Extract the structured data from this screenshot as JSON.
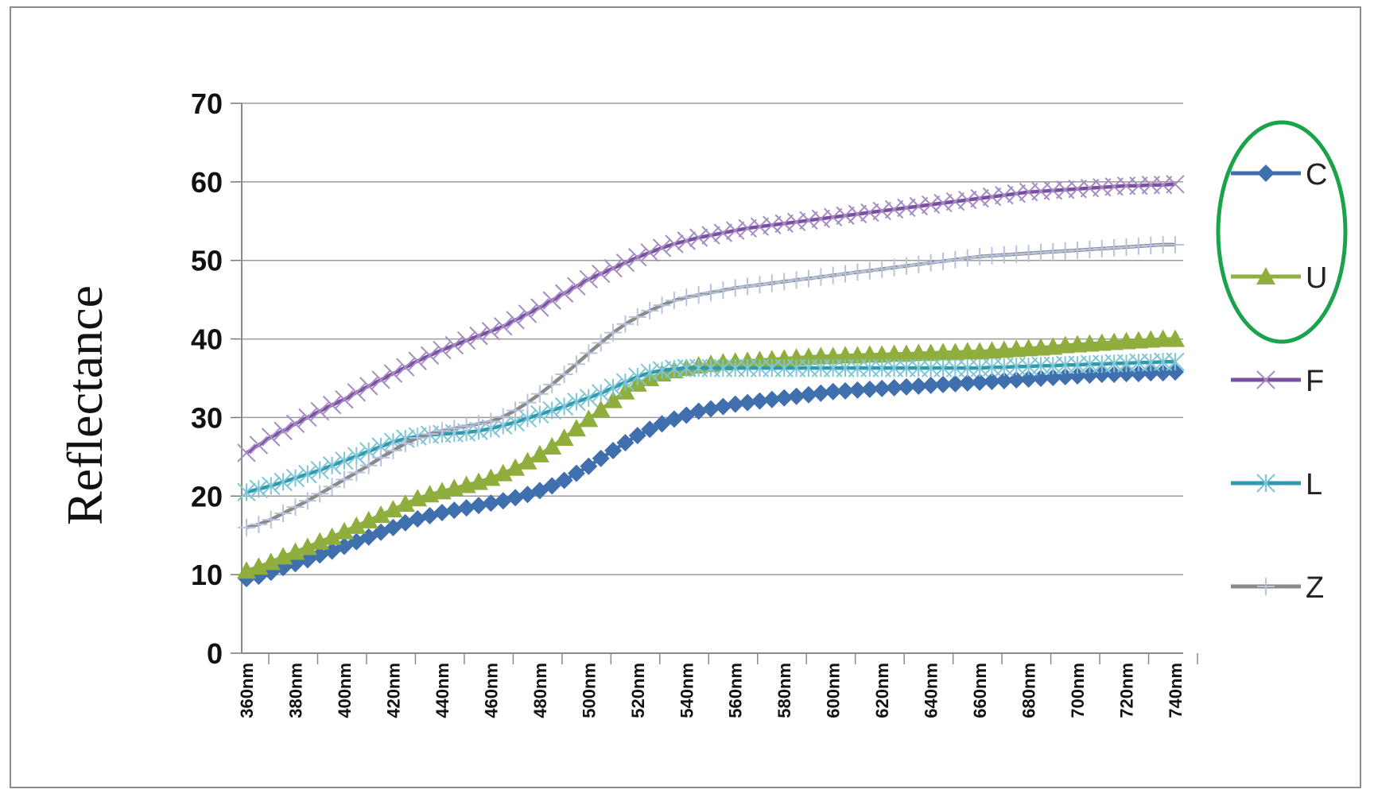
{
  "chart_data": {
    "type": "line",
    "title": "",
    "xlabel": "",
    "ylabel": "Reflectance",
    "ylim": [
      0,
      70
    ],
    "yticks": [
      "0",
      "10",
      "20",
      "30",
      "40",
      "50",
      "60",
      "70"
    ],
    "grid": true,
    "legend_position": "right",
    "x": [
      360,
      365,
      370,
      375,
      380,
      385,
      390,
      395,
      400,
      405,
      410,
      415,
      420,
      425,
      430,
      435,
      440,
      445,
      450,
      455,
      460,
      465,
      470,
      475,
      480,
      485,
      490,
      495,
      500,
      505,
      510,
      515,
      520,
      525,
      530,
      535,
      540,
      545,
      550,
      555,
      560,
      565,
      570,
      575,
      580,
      585,
      590,
      595,
      600,
      605,
      610,
      615,
      620,
      625,
      630,
      635,
      640,
      645,
      650,
      655,
      660,
      665,
      670,
      675,
      680,
      685,
      690,
      695,
      700,
      705,
      710,
      715,
      720,
      725,
      730,
      735,
      740
    ],
    "categories": [
      "360nm",
      "380nm",
      "400nm",
      "420nm",
      "440nm",
      "460nm",
      "480nm",
      "500nm",
      "520nm",
      "540nm",
      "560nm",
      "580nm",
      "600nm",
      "620nm",
      "640nm",
      "660nm",
      "680nm",
      "700nm",
      "720nm",
      "740nm"
    ],
    "series": [
      {
        "name": "C",
        "color": "#3f6fad",
        "marker": "diamond",
        "values": [
          9.5,
          9.8,
          10.3,
          10.9,
          11.4,
          11.9,
          12.5,
          13.0,
          13.6,
          14.2,
          14.8,
          15.4,
          16.0,
          16.6,
          17.1,
          17.5,
          17.9,
          18.2,
          18.5,
          18.8,
          19.1,
          19.4,
          19.8,
          20.2,
          20.7,
          21.3,
          22.0,
          22.9,
          23.8,
          24.8,
          25.8,
          26.8,
          27.7,
          28.5,
          29.2,
          29.8,
          30.3,
          30.8,
          31.1,
          31.4,
          31.7,
          31.9,
          32.1,
          32.3,
          32.5,
          32.7,
          32.9,
          33.1,
          33.3,
          33.4,
          33.5,
          33.6,
          33.7,
          33.8,
          33.9,
          34.0,
          34.1,
          34.2,
          34.3,
          34.4,
          34.5,
          34.6,
          34.7,
          34.8,
          34.9,
          35.0,
          35.1,
          35.2,
          35.3,
          35.4,
          35.5,
          35.5,
          35.6,
          35.6,
          35.7,
          35.7,
          35.8
        ]
      },
      {
        "name": "U",
        "color": "#8fae3e",
        "marker": "triangle",
        "values": [
          10.5,
          11.0,
          11.6,
          12.3,
          12.9,
          13.5,
          14.2,
          14.8,
          15.5,
          16.2,
          16.9,
          17.6,
          18.3,
          19.0,
          19.7,
          20.2,
          20.6,
          21.0,
          21.4,
          21.8,
          22.3,
          22.9,
          23.6,
          24.4,
          25.3,
          26.3,
          27.4,
          28.6,
          29.8,
          31.0,
          32.2,
          33.3,
          34.3,
          35.0,
          35.6,
          36.0,
          36.3,
          36.6,
          36.8,
          37.0,
          37.1,
          37.2,
          37.3,
          37.4,
          37.5,
          37.6,
          37.7,
          37.8,
          37.8,
          37.9,
          37.9,
          38.0,
          38.0,
          38.1,
          38.1,
          38.2,
          38.2,
          38.3,
          38.3,
          38.4,
          38.4,
          38.5,
          38.6,
          38.7,
          38.8,
          38.9,
          39.0,
          39.2,
          39.3,
          39.4,
          39.5,
          39.6,
          39.7,
          39.8,
          39.9,
          40.0,
          40.0
        ]
      },
      {
        "name": "F",
        "color": "#7b4fa0",
        "marker": "x",
        "values": [
          25.5,
          26.5,
          27.5,
          28.3,
          29.2,
          30.0,
          30.8,
          31.6,
          32.3,
          33.2,
          34.0,
          34.8,
          35.6,
          36.4,
          37.2,
          37.9,
          38.6,
          39.2,
          39.8,
          40.4,
          41.0,
          41.6,
          42.4,
          43.2,
          44.0,
          44.9,
          45.8,
          46.7,
          47.6,
          48.3,
          49.0,
          49.7,
          50.4,
          51.0,
          51.6,
          52.1,
          52.5,
          52.9,
          53.2,
          53.5,
          53.8,
          54.1,
          54.3,
          54.5,
          54.7,
          54.9,
          55.1,
          55.3,
          55.5,
          55.7,
          55.9,
          56.1,
          56.3,
          56.5,
          56.7,
          56.9,
          57.1,
          57.3,
          57.5,
          57.7,
          57.9,
          58.1,
          58.3,
          58.5,
          58.7,
          58.8,
          58.9,
          59.0,
          59.1,
          59.2,
          59.3,
          59.4,
          59.5,
          59.5,
          59.6,
          59.6,
          59.7
        ]
      },
      {
        "name": "L",
        "color": "#2f99ad",
        "marker": "asterisk",
        "values": [
          20.5,
          20.9,
          21.3,
          21.8,
          22.3,
          22.8,
          23.3,
          23.9,
          24.5,
          25.1,
          25.7,
          26.3,
          26.9,
          27.3,
          27.6,
          27.8,
          27.9,
          28.0,
          28.1,
          28.3,
          28.6,
          29.0,
          29.4,
          29.9,
          30.4,
          30.9,
          31.4,
          32.0,
          32.5,
          33.1,
          33.8,
          34.5,
          35.2,
          35.7,
          36.0,
          36.2,
          36.3,
          36.3,
          36.3,
          36.3,
          36.3,
          36.3,
          36.3,
          36.3,
          36.3,
          36.3,
          36.3,
          36.3,
          36.3,
          36.3,
          36.3,
          36.3,
          36.3,
          36.3,
          36.3,
          36.3,
          36.3,
          36.3,
          36.3,
          36.3,
          36.3,
          36.4,
          36.4,
          36.5,
          36.5,
          36.6,
          36.6,
          36.7,
          36.7,
          36.8,
          36.8,
          36.9,
          36.9,
          37.0,
          37.0,
          37.1,
          37.1
        ]
      },
      {
        "name": "Z",
        "color": "#8a8a8a",
        "marker": "plus",
        "values": [
          16.0,
          16.4,
          17.0,
          17.8,
          18.6,
          19.4,
          20.3,
          21.2,
          22.1,
          23.0,
          23.9,
          24.9,
          25.8,
          26.7,
          27.4,
          27.9,
          28.3,
          28.6,
          28.9,
          29.2,
          29.5,
          30.1,
          30.9,
          31.9,
          33.0,
          34.2,
          35.5,
          36.8,
          38.2,
          39.5,
          40.8,
          41.9,
          42.8,
          43.6,
          44.3,
          44.9,
          45.3,
          45.6,
          45.9,
          46.2,
          46.5,
          46.7,
          46.9,
          47.1,
          47.3,
          47.5,
          47.7,
          47.9,
          48.1,
          48.3,
          48.5,
          48.7,
          48.9,
          49.1,
          49.3,
          49.5,
          49.7,
          49.9,
          50.1,
          50.3,
          50.5,
          50.6,
          50.7,
          50.8,
          50.9,
          51.0,
          51.1,
          51.2,
          51.3,
          51.4,
          51.5,
          51.6,
          51.7,
          51.8,
          51.9,
          52.0,
          52.0
        ]
      }
    ],
    "annotations": [
      {
        "type": "ellipse",
        "color": "#1aa34a",
        "around_legend": [
          "C",
          "U"
        ]
      }
    ]
  }
}
